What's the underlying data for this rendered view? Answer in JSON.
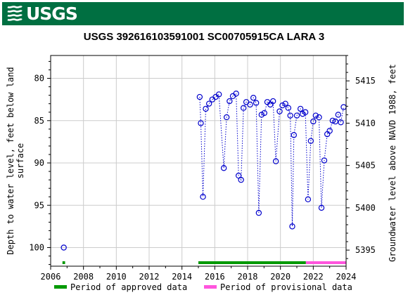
{
  "header": {
    "logo_text": "USGS",
    "banner_color": "#006f41"
  },
  "chart_data": {
    "type": "scatter",
    "title": "USGS 392616103591001 SC00705915CA LARA 3",
    "ylabel_left": [
      "Depth to water level, feet below land",
      "surface"
    ],
    "ylabel_right": "Groundwater level above NAVD 1988, feet",
    "x_ticks": [
      "2006",
      "2008",
      "2010",
      "2012",
      "2014",
      "2016",
      "2018",
      "2020",
      "2022",
      "2024"
    ],
    "y_left_ticks": [
      "80",
      "85",
      "90",
      "95",
      "100"
    ],
    "y_right_ticks": [
      "5415",
      "5410",
      "5405",
      "5400",
      "5395"
    ],
    "xlim": [
      2006.0,
      2024.0
    ],
    "ylim_left": [
      102.2,
      77.3
    ],
    "y_right_offset": 5495.3,
    "grid": true,
    "marker_color": "#0000cc",
    "series": [
      {
        "name": "Depth to water level",
        "connected": false,
        "points": [
          [
            2006.8,
            100.0
          ]
        ]
      },
      {
        "name": "Depth to water level",
        "connected": true,
        "points": [
          [
            2015.08,
            82.2
          ],
          [
            2015.15,
            85.3
          ],
          [
            2015.28,
            94.0
          ],
          [
            2015.45,
            83.6
          ],
          [
            2015.65,
            83.0
          ],
          [
            2015.85,
            82.5
          ],
          [
            2016.05,
            82.2
          ],
          [
            2016.25,
            81.9
          ],
          [
            2016.55,
            90.6
          ],
          [
            2016.72,
            84.6
          ],
          [
            2016.9,
            82.7
          ],
          [
            2017.1,
            82.1
          ],
          [
            2017.3,
            81.8
          ],
          [
            2017.45,
            91.5
          ],
          [
            2017.6,
            92.0
          ],
          [
            2017.75,
            83.5
          ],
          [
            2017.92,
            82.8
          ],
          [
            2018.15,
            83.1
          ],
          [
            2018.35,
            82.3
          ],
          [
            2018.52,
            82.9
          ],
          [
            2018.68,
            95.9
          ],
          [
            2018.85,
            84.3
          ],
          [
            2019.02,
            84.1
          ],
          [
            2019.2,
            82.8
          ],
          [
            2019.38,
            83.1
          ],
          [
            2019.55,
            82.7
          ],
          [
            2019.72,
            89.8
          ],
          [
            2019.95,
            83.9
          ],
          [
            2020.12,
            83.2
          ],
          [
            2020.3,
            83.0
          ],
          [
            2020.48,
            83.5
          ],
          [
            2020.6,
            84.4
          ],
          [
            2020.72,
            97.5
          ],
          [
            2020.82,
            86.7
          ],
          [
            2021.0,
            84.4
          ],
          [
            2021.22,
            83.6
          ],
          [
            2021.35,
            84.2
          ],
          [
            2021.52,
            84.0
          ],
          [
            2021.68,
            94.3
          ],
          [
            2021.85,
            87.4
          ],
          [
            2022.0,
            85.1
          ],
          [
            2022.15,
            84.4
          ],
          [
            2022.35,
            84.6
          ],
          [
            2022.5,
            95.3
          ],
          [
            2022.67,
            89.7
          ],
          [
            2022.85,
            86.6
          ],
          [
            2023.0,
            86.2
          ],
          [
            2023.18,
            85.0
          ],
          [
            2023.35,
            85.1
          ],
          [
            2023.52,
            84.3
          ],
          [
            2023.68,
            85.2
          ],
          [
            2023.85,
            83.4
          ]
        ]
      }
    ],
    "periods": [
      {
        "label": "Period of approved data",
        "color": "#009900",
        "ranges": [
          [
            2006.72,
            2006.88
          ],
          [
            2015.0,
            2021.55
          ]
        ]
      },
      {
        "label": "Period of provisional data",
        "color": "#ff55dd",
        "ranges": [
          [
            2021.55,
            2024.0
          ]
        ]
      }
    ],
    "legend": {
      "placement": "bottom",
      "items": [
        {
          "label": "Period of approved data",
          "color": "#009900"
        },
        {
          "label": "Period of provisional data",
          "color": "#ff55dd"
        }
      ]
    }
  }
}
